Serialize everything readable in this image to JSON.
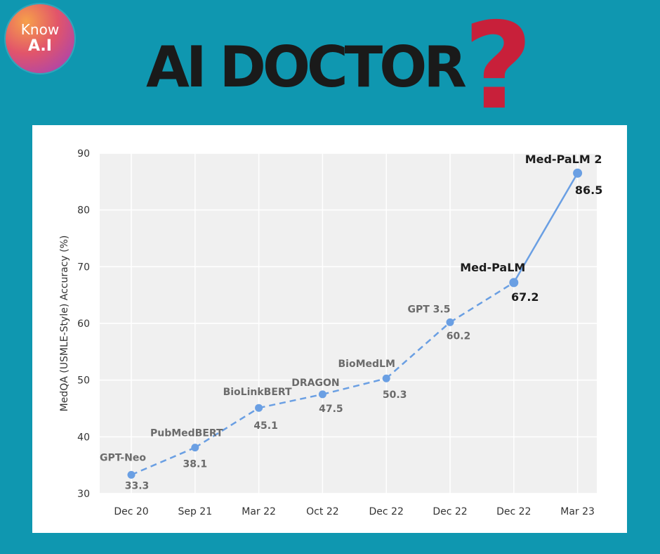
{
  "logo": {
    "line1": "Know",
    "line2": "A.I"
  },
  "headline": {
    "text": "AI DOCTOR",
    "mark": "?"
  },
  "colors": {
    "background": "#0f97b0",
    "line": "#6a9fe3",
    "question_mark": "#c8203a",
    "plot_bg": "#f0f0f0"
  },
  "chart_data": {
    "type": "line",
    "title": "",
    "xlabel": "",
    "ylabel": "MedQA (USMLE-Style) Accuracy (%)",
    "ylim": [
      30,
      90
    ],
    "yticks": [
      30,
      40,
      50,
      60,
      70,
      80,
      90
    ],
    "grid": true,
    "categories": [
      "Dec 20",
      "Sep 21",
      "Mar 22",
      "Oct 22",
      "Dec 22",
      "Dec 22",
      "Dec 22",
      "Mar 23"
    ],
    "points": [
      {
        "label": "GPT-Neo",
        "value": 33.3,
        "value_text": "33.3",
        "highlight": false
      },
      {
        "label": "PubMedBERT",
        "value": 38.1,
        "value_text": "38.1",
        "highlight": false
      },
      {
        "label": "BioLinkBERT",
        "value": 45.1,
        "value_text": "45.1",
        "highlight": false
      },
      {
        "label": "DRAGON",
        "value": 47.5,
        "value_text": "47.5",
        "highlight": false
      },
      {
        "label": "BioMedLM",
        "value": 50.3,
        "value_text": "50.3",
        "highlight": false
      },
      {
        "label": "GPT 3.5",
        "value": 60.2,
        "value_text": "60.2",
        "highlight": false
      },
      {
        "label": "Med-PaLM",
        "value": 67.2,
        "value_text": "67.2",
        "highlight": true
      },
      {
        "label": "Med-PaLM 2",
        "value": 86.5,
        "value_text": "86.5",
        "highlight": true
      }
    ],
    "dashed_segments_through_index": 6
  }
}
